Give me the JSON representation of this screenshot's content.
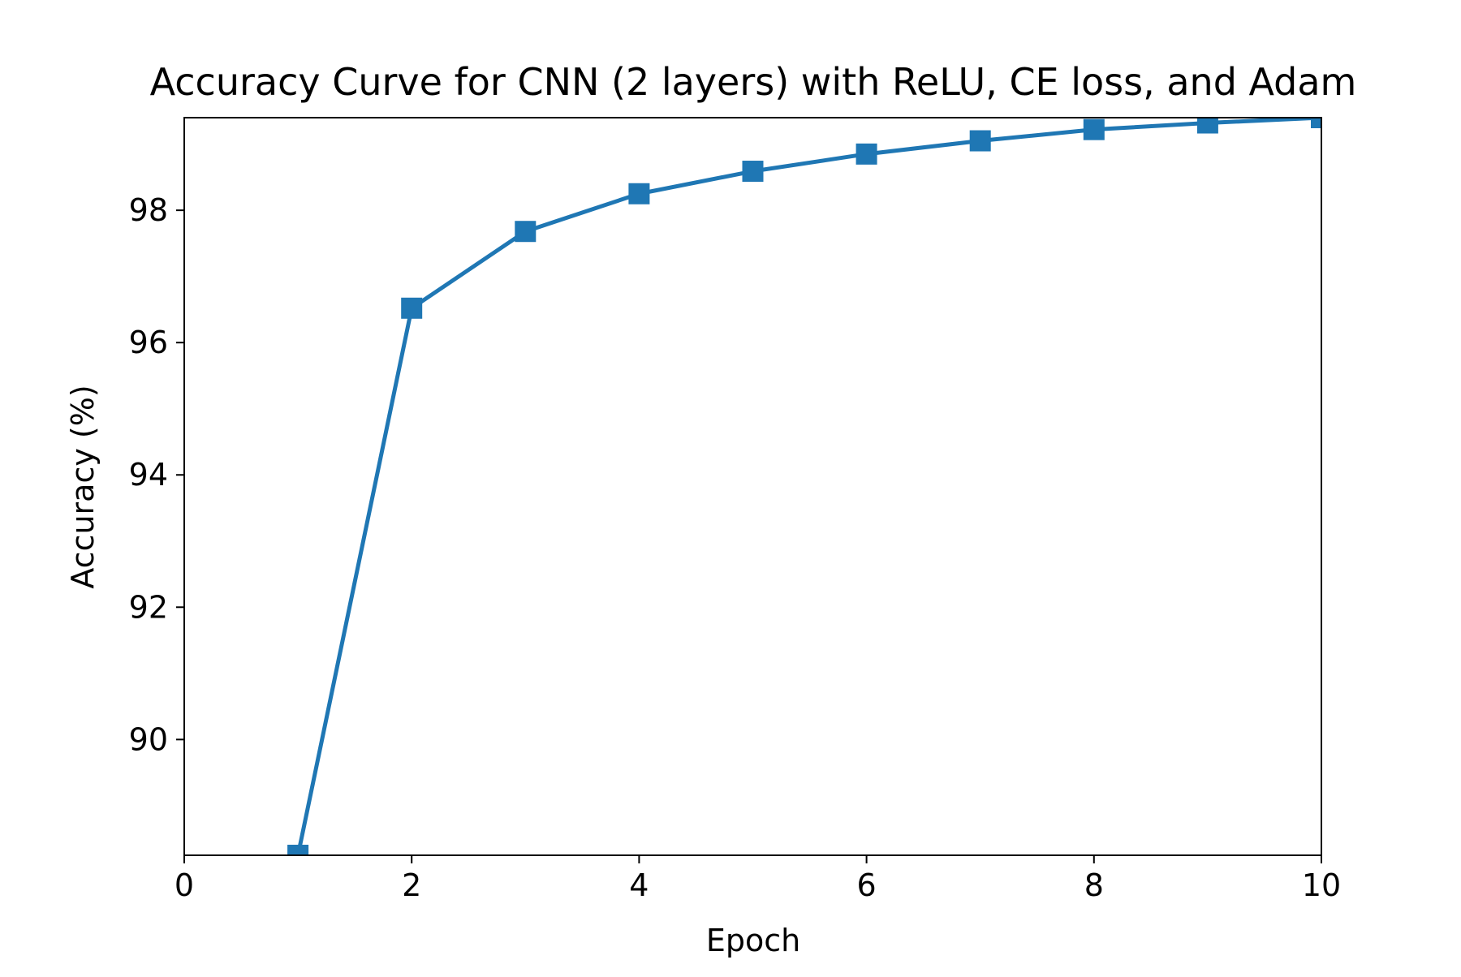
{
  "chart_data": {
    "type": "line",
    "title": "Accuracy Curve for CNN (2 layers) with ReLU, CE loss, and Adam",
    "xlabel": "Epoch",
    "ylabel": "Accuracy (%)",
    "xlim": [
      0,
      10
    ],
    "ylim": [
      88.25,
      99.4
    ],
    "xticks": [
      0,
      2,
      4,
      6,
      8,
      10
    ],
    "xtick_labels": [
      "0",
      "2",
      "4",
      "6",
      "8",
      "10"
    ],
    "yticks": [
      90,
      92,
      94,
      96,
      98
    ],
    "ytick_labels": [
      "90",
      "92",
      "94",
      "96",
      "98"
    ],
    "grid": false,
    "legend": false,
    "series": [
      {
        "x": [
          1,
          2,
          3,
          4,
          5,
          6,
          7,
          8,
          9,
          10
        ],
        "values": [
          88.25,
          96.52,
          97.68,
          98.25,
          98.59,
          98.85,
          99.05,
          99.22,
          99.32,
          99.4
        ],
        "color": "#1f77b4",
        "marker": "square"
      }
    ]
  }
}
